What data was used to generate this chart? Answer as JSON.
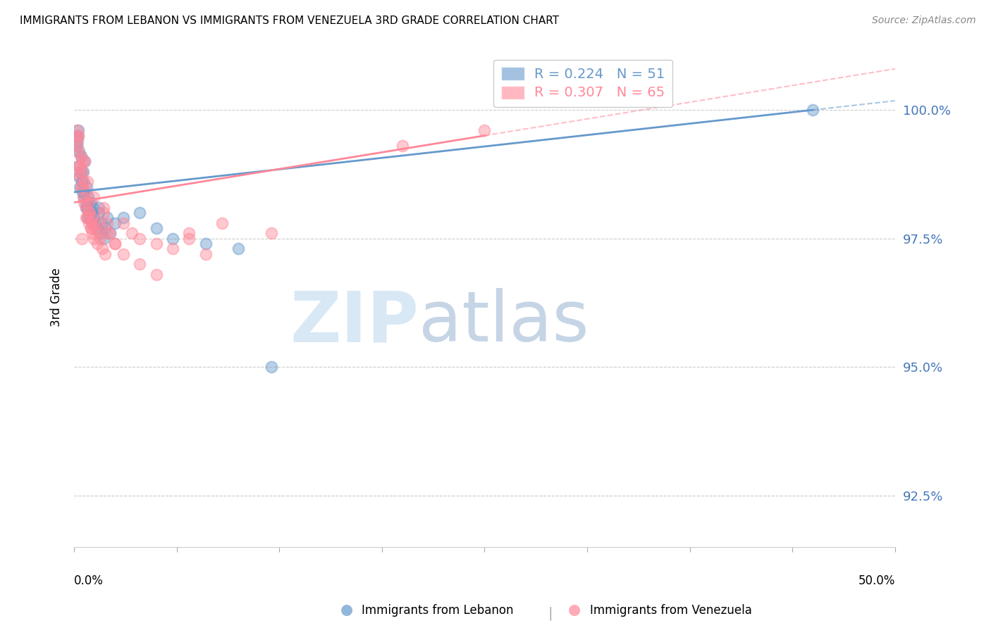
{
  "title": "IMMIGRANTS FROM LEBANON VS IMMIGRANTS FROM VENEZUELA 3RD GRADE CORRELATION CHART",
  "source": "Source: ZipAtlas.com",
  "ylabel": "3rd Grade",
  "y_tick_labels": [
    "92.5%",
    "95.0%",
    "97.5%",
    "100.0%"
  ],
  "y_tick_values": [
    92.5,
    95.0,
    97.5,
    100.0
  ],
  "x_range": [
    0.0,
    50.0
  ],
  "y_range": [
    91.5,
    101.2
  ],
  "legend_r1": "R = 0.224",
  "legend_n1": "N = 51",
  "legend_r2": "R = 0.307",
  "legend_n2": "N = 65",
  "color_lebanon": "#6699CC",
  "color_venezuela": "#FF8899",
  "color_right_axis": "#4477BB",
  "lebanon_x": [
    0.1,
    0.15,
    0.2,
    0.25,
    0.3,
    0.35,
    0.4,
    0.45,
    0.5,
    0.55,
    0.6,
    0.65,
    0.7,
    0.75,
    0.8,
    0.85,
    0.9,
    0.95,
    1.0,
    1.05,
    1.1,
    1.15,
    1.2,
    1.3,
    1.4,
    1.5,
    1.6,
    1.7,
    1.8,
    1.9,
    2.0,
    2.2,
    2.5,
    3.0,
    4.0,
    5.0,
    6.0,
    8.0,
    10.0,
    12.0,
    0.2,
    0.3,
    0.4,
    0.5,
    0.6,
    0.7,
    0.8,
    0.9,
    1.0,
    1.5,
    45.0
  ],
  "lebanon_y": [
    99.3,
    99.5,
    98.9,
    99.6,
    98.7,
    98.5,
    99.1,
    98.6,
    98.4,
    98.8,
    98.3,
    99.0,
    98.2,
    98.5,
    98.1,
    98.3,
    98.0,
    97.9,
    98.2,
    98.0,
    97.8,
    98.1,
    97.9,
    97.8,
    97.7,
    98.0,
    97.6,
    97.8,
    97.5,
    97.7,
    97.9,
    97.6,
    97.8,
    97.9,
    98.0,
    97.7,
    97.5,
    97.4,
    97.3,
    95.0,
    99.4,
    99.2,
    98.8,
    98.6,
    98.4,
    98.1,
    97.9,
    98.2,
    98.0,
    98.1,
    100.0
  ],
  "venezuela_x": [
    0.1,
    0.15,
    0.2,
    0.25,
    0.3,
    0.35,
    0.4,
    0.45,
    0.5,
    0.55,
    0.6,
    0.65,
    0.7,
    0.75,
    0.8,
    0.85,
    0.9,
    0.95,
    1.0,
    1.05,
    1.1,
    1.15,
    1.2,
    1.3,
    1.4,
    1.5,
    1.6,
    1.7,
    1.8,
    1.9,
    2.0,
    2.2,
    2.5,
    3.0,
    3.5,
    4.0,
    5.0,
    6.0,
    7.0,
    8.0,
    0.2,
    0.3,
    0.4,
    0.5,
    0.6,
    0.7,
    0.8,
    0.9,
    1.0,
    1.2,
    1.5,
    1.8,
    2.0,
    2.5,
    3.0,
    4.0,
    5.0,
    7.0,
    9.0,
    12.0,
    0.25,
    0.35,
    0.45,
    20.0,
    25.0
  ],
  "venezuela_y": [
    99.4,
    99.6,
    99.2,
    99.5,
    98.9,
    98.7,
    99.1,
    98.5,
    98.8,
    98.3,
    98.6,
    99.0,
    98.1,
    98.4,
    97.9,
    98.2,
    97.8,
    98.0,
    97.7,
    97.9,
    97.6,
    97.8,
    97.5,
    97.7,
    97.4,
    97.6,
    97.5,
    97.3,
    98.0,
    97.2,
    97.8,
    97.6,
    97.4,
    97.8,
    97.6,
    97.5,
    97.4,
    97.3,
    97.6,
    97.2,
    99.3,
    98.8,
    98.5,
    99.0,
    98.2,
    97.9,
    98.6,
    98.0,
    97.7,
    98.3,
    97.8,
    98.1,
    97.6,
    97.4,
    97.2,
    97.0,
    96.8,
    97.5,
    97.8,
    97.6,
    99.5,
    98.9,
    97.5,
    99.3,
    99.6
  ]
}
